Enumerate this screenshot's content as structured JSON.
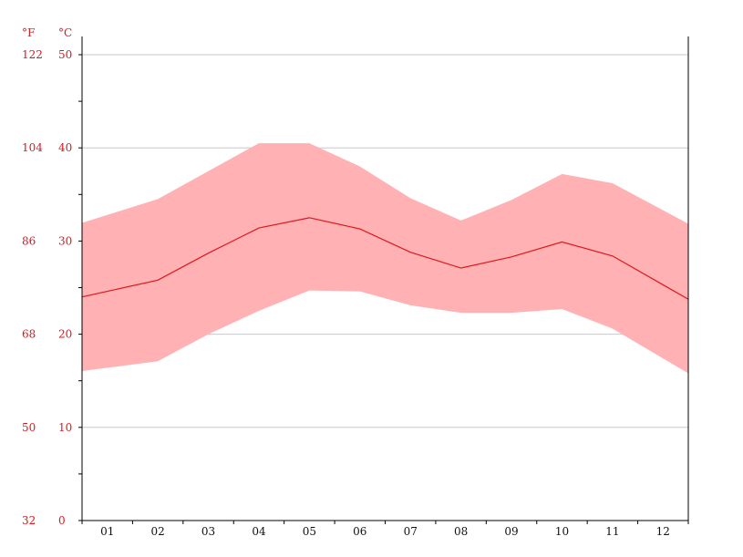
{
  "chart_data": {
    "type": "area",
    "title": "",
    "left_unit_label": "°F",
    "inner_unit_label": "°C",
    "categories": [
      "01",
      "02",
      "03",
      "04",
      "05",
      "06",
      "07",
      "08",
      "09",
      "10",
      "11",
      "12"
    ],
    "celsius_ticks": [
      "0",
      "10",
      "20",
      "30",
      "40",
      "50"
    ],
    "fahrenheit_ticks": [
      "32",
      "50",
      "68",
      "86",
      "104",
      "122"
    ],
    "ylim": [
      0,
      50
    ],
    "grid": true,
    "colors": {
      "band": "#ffb1b3",
      "line": "#e0161d",
      "axis_text": "#e0161d",
      "axis": "#000000"
    },
    "series": [
      {
        "values": [
          24.6,
          25.8,
          28.7,
          31.4,
          32.5,
          31.3,
          28.8,
          27.1,
          28.3,
          29.9,
          28.4,
          25.3
        ]
      },
      {
        "values": [
          32.8,
          34.5,
          37.5,
          40.5,
          40.5,
          38.0,
          34.6,
          32.2,
          34.4,
          37.2,
          36.2,
          33.3
        ]
      },
      {
        "values": [
          16.4,
          17.1,
          20.0,
          22.5,
          24.7,
          24.6,
          23.1,
          22.3,
          22.3,
          22.7,
          20.6,
          17.4
        ]
      }
    ]
  }
}
